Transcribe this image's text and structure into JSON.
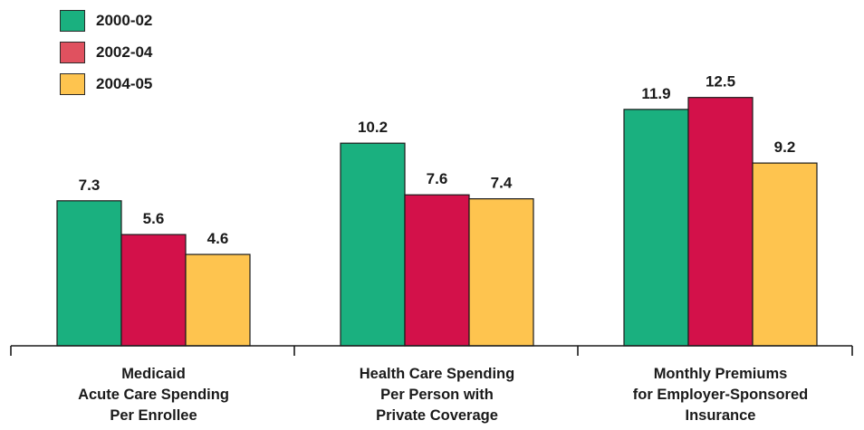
{
  "chart_data": {
    "type": "bar",
    "categories": [
      [
        "Medicaid",
        "Acute Care Spending",
        "Per Enrollee"
      ],
      [
        "Health Care Spending",
        "Per Person with",
        "Private Coverage"
      ],
      [
        "Monthly Premiums",
        "for Employer-Sponsored",
        "Insurance"
      ]
    ],
    "series": [
      {
        "name": "2000-02",
        "color": "#1ab07f",
        "values": [
          7.3,
          10.2,
          11.9
        ]
      },
      {
        "name": "2002-04",
        "color": "#d3114a",
        "values": [
          5.6,
          7.6,
          12.5
        ]
      },
      {
        "name": "2004-05",
        "color": "#fec44f",
        "values": [
          4.6,
          7.4,
          9.2
        ]
      }
    ],
    "data_labels": [
      [
        "7.3",
        "5.6",
        "4.6"
      ],
      [
        "10.2",
        "7.6",
        "7.4"
      ],
      [
        "11.9",
        "12.5",
        "9.2"
      ]
    ],
    "ylim": [
      0,
      14.4
    ],
    "grid": false,
    "legend_position": "top-left"
  }
}
